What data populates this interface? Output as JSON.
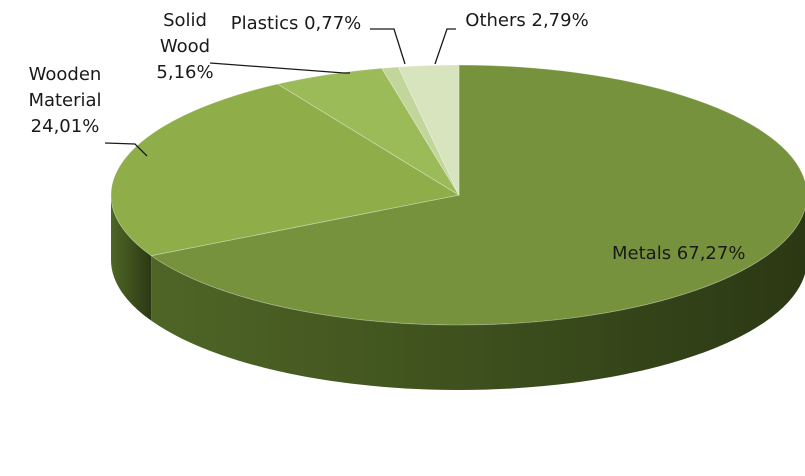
{
  "chart_data": {
    "type": "pie",
    "title": "",
    "three_d": true,
    "legend": "none",
    "slices": [
      {
        "name": "Metals",
        "value": 67.27,
        "label_lines": [
          "Metals 67,27%"
        ],
        "color": "#76923c"
      },
      {
        "name": "Wooden Material",
        "value": 24.01,
        "label_lines": [
          "Wooden",
          "Material",
          "24,01%"
        ],
        "color": "#8fae4a"
      },
      {
        "name": "Solid Wood",
        "value": 5.16,
        "label_lines": [
          "Solid",
          "Wood",
          "5,16%"
        ],
        "color": "#9bbb59"
      },
      {
        "name": "Plastics",
        "value": 0.77,
        "label_lines": [
          "Plastics 0,77%"
        ],
        "color": "#c2d69b"
      },
      {
        "name": "Others",
        "value": 2.79,
        "label_lines": [
          "Others 2,79%"
        ],
        "color": "#d7e4bd"
      }
    ]
  }
}
